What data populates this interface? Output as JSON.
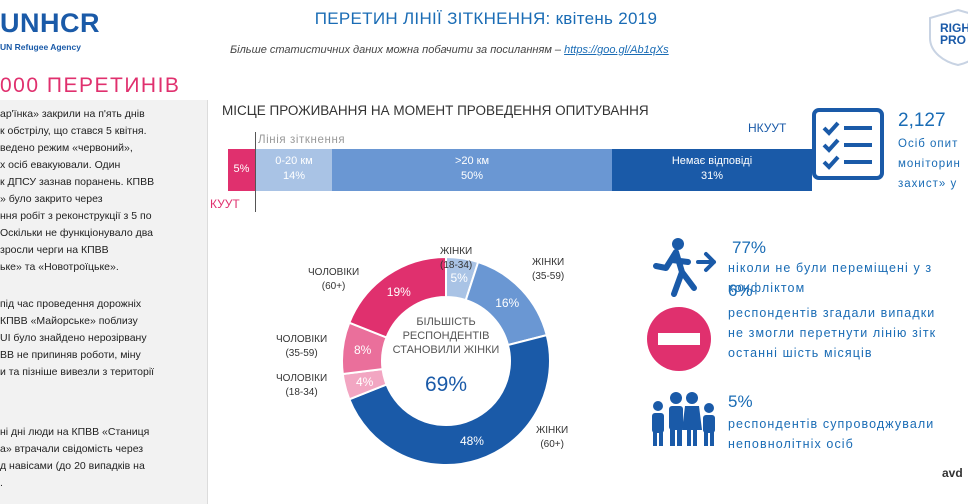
{
  "header": {
    "logo_text": "UNHCR",
    "logo_sub": "UN Refugee Agency",
    "title": "ПЕРЕТИН ЛІНІЇ ЗІТКНЕННЯ: квітень 2019",
    "subtitle_text": "Більше статистичних даних можна побачити за посиланням – ",
    "subtitle_link": "https://goo.gl/Ab1qXs",
    "badge_text_1": "RIGH",
    "badge_text_2": "PRO"
  },
  "left": {
    "heading": "000 ПЕРЕТИНІВ",
    "para1": "ар'їнка» закрили на п'ять днів\nк обстрілу, що стався 5 квітня.\nведено режим «червоний»,\nх осіб евакуювали. Один\nк ДПСУ зазнав поранень. КПВВ\n»    було    закрито    через\nння робіт з реконструкції з 5 по\nОскільки не функціонувало два\nзросли черги на КПВВ\nьке» та «Новотроїцьке».",
    "para2": "під час проведення дорожніх\nКПВВ «Майорське» поблизу\nUI було знайдено нерозірвану\nВВ не припиняв роботи, міну\nи та пізніше вивезли з території",
    "para3": "ні дні люди на КПВВ «Станиця\nа» втрачали свідомість через\nд навісами (до 20 випадків на\n."
  },
  "residence": {
    "section_title": "МІСЦЕ ПРОЖИВАННЯ НА МОМЕНТ ПРОВЕДЕННЯ ОПИТУВАННЯ",
    "nkuut": "НКУУТ",
    "kuut": "КУУТ",
    "line_label": "Лінія зіткнення",
    "bars": [
      {
        "label": "",
        "value": "5%",
        "fraction": 0.05,
        "color": "#e0306e"
      },
      {
        "label": "0-20 км",
        "value": "14%",
        "fraction": 0.14,
        "color": "#a9c3e5"
      },
      {
        "label": ">20 км",
        "value": "50%",
        "fraction": 0.5,
        "color": "#6a97d3"
      },
      {
        "label": "Немає відповіді",
        "value": "31%",
        "fraction": 0.31,
        "color": "#1a5aa8"
      }
    ]
  },
  "donut": {
    "center_text": "БІЛЬШІСТЬ\nРЕСПОНДЕНТІВ\nСТАНОВИЛИ ЖІНКИ",
    "center_value": "69%",
    "segments": [
      {
        "caption": "ЖІНКИ\n(18-34)",
        "value": "5%",
        "share": 5,
        "color": "#a9c3e5"
      },
      {
        "caption": "ЖІНКИ\n(35-59)",
        "value": "16%",
        "share": 16,
        "color": "#6a97d3"
      },
      {
        "caption": "ЖІНКИ\n(60+)",
        "value": "48%",
        "share": 48,
        "color": "#1a5aa8"
      },
      {
        "caption": "ЧОЛОВІКИ\n(18-34)",
        "value": "4%",
        "share": 4,
        "color": "#f2a6c2"
      },
      {
        "caption": "ЧОЛОВІКИ\n(35-59)",
        "value": "8%",
        "share": 8,
        "color": "#ea6f9b"
      },
      {
        "caption": "ЧОЛОВІКИ\n(60+)",
        "value": "19%",
        "share": 19,
        "color": "#e0306e"
      }
    ]
  },
  "stats": {
    "respondents_value": "2,127",
    "respondents_text": "Осіб опит\nмоніторин\nзахист» у",
    "never_displaced_value": "77%",
    "never_displaced_text": "ніколи не були переміщені у з\nконфліктом",
    "could_not_cross_value": "6%",
    "could_not_cross_text": "респондентів згадали випадки\nне змогли перетнути лінію зітк\nостанні шість місяців",
    "accompanied_value": "5%",
    "accompanied_text": "респондентів супроводжували\nнеповнолітніх осіб",
    "watermark": "avd"
  },
  "colors": {
    "accent_blue": "#1a6cb5",
    "dark_blue": "#1a5aa8",
    "pink": "#e0306e"
  }
}
